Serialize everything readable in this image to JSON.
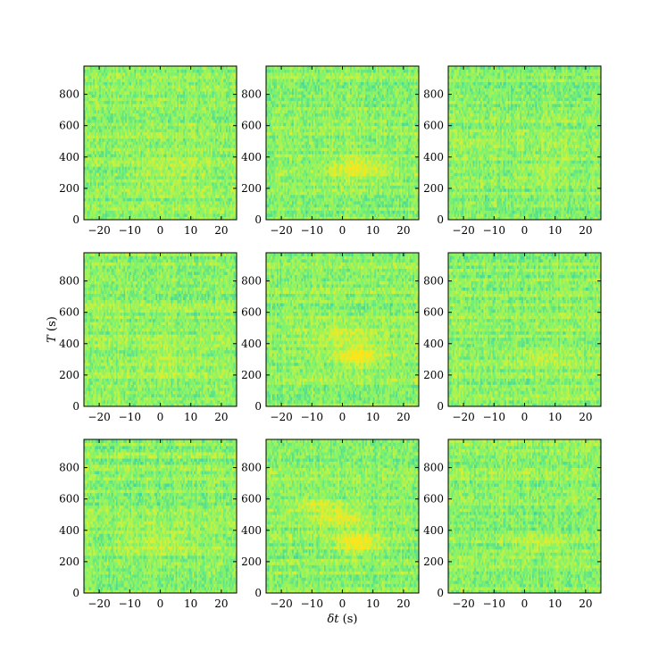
{
  "chart_data": {
    "type": "heatmap",
    "layout": {
      "rows": 3,
      "cols": 3
    },
    "xlabel_symbol": "δt",
    "xlabel_unit": " (s)",
    "ylabel_symbol": "T",
    "ylabel_unit": " (s)",
    "xlim": [
      -25,
      25
    ],
    "ylim": [
      0,
      980
    ],
    "x_ticks": [
      -20,
      -10,
      0,
      10,
      20
    ],
    "x_tick_labels": [
      "−20",
      "−10",
      "0",
      "10",
      "20"
    ],
    "y_ticks": [
      0,
      200,
      400,
      600,
      800
    ],
    "y_tick_labels": [
      "0",
      "200",
      "400",
      "600",
      "800"
    ],
    "colormap": [
      "#1fb7c4",
      "#3fd2a2",
      "#7ef36f",
      "#c8f23f",
      "#ffe41a"
    ],
    "background_level": 0.55,
    "panels": [
      {
        "panel": "1",
        "features": [
          {
            "x": 5,
            "y": 330,
            "sx": 8,
            "sy": 60,
            "amp": 0.12
          }
        ]
      },
      {
        "panel": "2",
        "features": [
          {
            "x": 5,
            "y": 330,
            "sx": 6,
            "sy": 50,
            "amp": 0.35
          }
        ]
      },
      {
        "panel": "3",
        "features": [
          {
            "x": 5,
            "y": 310,
            "sx": 6,
            "sy": 50,
            "amp": 0.1
          }
        ]
      },
      {
        "panel": "4",
        "features": [
          {
            "x": 3,
            "y": 300,
            "sx": 10,
            "sy": 80,
            "amp": 0.15
          }
        ]
      },
      {
        "panel": "5",
        "features": [
          {
            "x": 5,
            "y": 320,
            "sx": 5,
            "sy": 40,
            "amp": 0.45
          },
          {
            "x": 2,
            "y": 450,
            "sx": 6,
            "sy": 40,
            "amp": 0.2
          }
        ]
      },
      {
        "panel": "6",
        "features": [
          {
            "x": 5,
            "y": 310,
            "sx": 6,
            "sy": 40,
            "amp": 0.15
          }
        ]
      },
      {
        "panel": "7",
        "features": [
          {
            "x": 0,
            "y": 320,
            "sx": 8,
            "sy": 50,
            "amp": 0.2
          }
        ]
      },
      {
        "panel": "8",
        "features": [
          {
            "x": 5,
            "y": 320,
            "sx": 5,
            "sy": 40,
            "amp": 0.5
          },
          {
            "x": 0,
            "y": 480,
            "sx": 6,
            "sy": 40,
            "amp": 0.3
          },
          {
            "x": -8,
            "y": 560,
            "sx": 6,
            "sy": 30,
            "amp": 0.25
          }
        ]
      },
      {
        "panel": "9",
        "features": [
          {
            "x": 5,
            "y": 320,
            "sx": 6,
            "sy": 40,
            "amp": 0.2
          }
        ]
      }
    ]
  }
}
